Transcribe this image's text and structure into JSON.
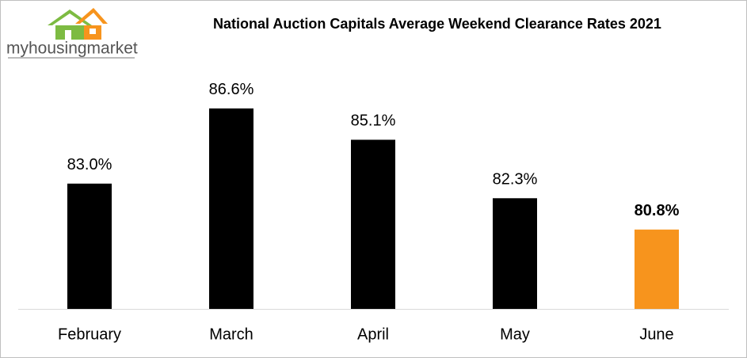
{
  "logo": {
    "text": "myhousingmarket"
  },
  "chart_data": {
    "type": "bar",
    "title": "National Auction Capitals Average Weekend Clearance Rates 2021",
    "categories": [
      "February",
      "March",
      "April",
      "May",
      "June"
    ],
    "values": [
      83.0,
      86.6,
      85.1,
      82.3,
      80.8
    ],
    "value_labels": [
      "83.0%",
      "86.6%",
      "85.1%",
      "82.3%",
      "80.8%"
    ],
    "color": "#000000",
    "colors": [
      "#000000",
      "#000000",
      "#000000",
      "#000000",
      "#f7941d"
    ],
    "ylim": [
      77,
      88
    ]
  }
}
